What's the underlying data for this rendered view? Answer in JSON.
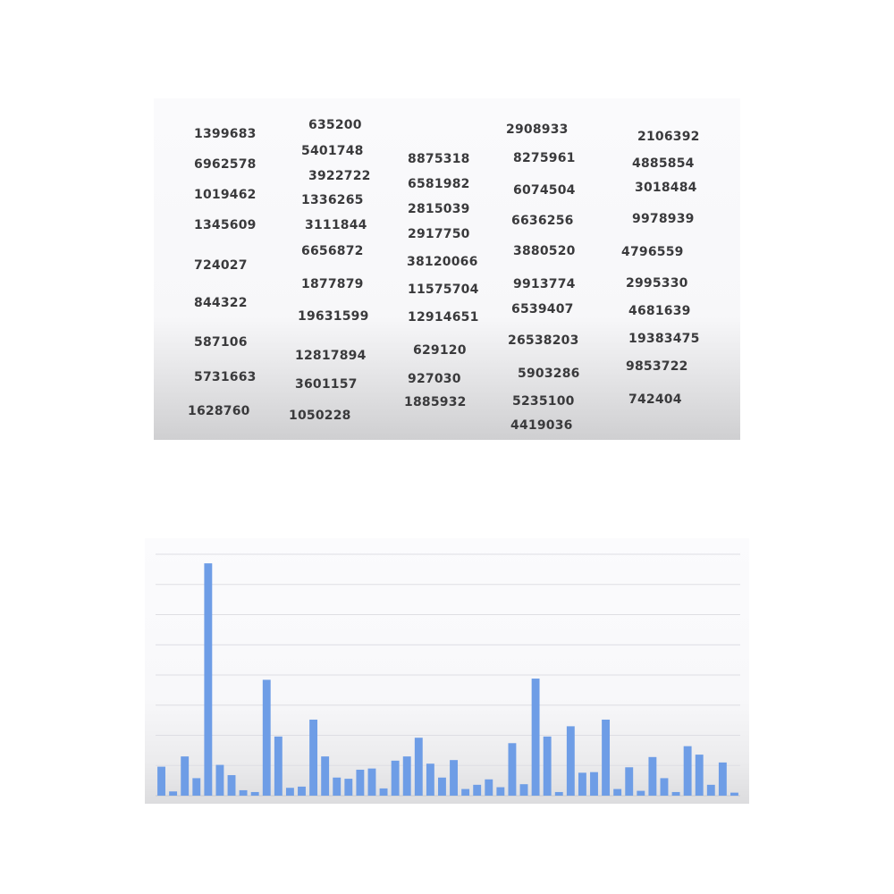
{
  "chart_data": [
    {
      "type": "table",
      "columns": [
        [
          "1399683",
          "6962578",
          "1019462",
          "1345609",
          "724027",
          "844322",
          "587106",
          "5731663",
          "1628760"
        ],
        [
          "635200",
          "5401748",
          "3922722",
          "1336265",
          "3111844",
          "6656872",
          "1877879",
          "19631599",
          "12817894",
          "3601157",
          "1050228"
        ],
        [
          "8875318",
          "6581982",
          "2815039",
          "2917750",
          "38120066",
          "11575704",
          "12914651",
          "629120",
          "927030",
          "1885932"
        ],
        [
          "2908933",
          "8275961",
          "6074504",
          "6636256",
          "3880520",
          "9913774",
          "6539407",
          "26538203",
          "5903286",
          "5235100",
          "4419036"
        ],
        [
          "2106392",
          "4885854",
          "3018484",
          "9978939",
          "4796559",
          "2995330",
          "4681639",
          "19383475",
          "9853722",
          "742404"
        ]
      ]
    },
    {
      "type": "bar",
      "grid": true,
      "ylim": [
        0,
        40000000
      ],
      "values": [
        4800000,
        700000,
        6500000,
        2900000,
        38500000,
        5100000,
        3400000,
        900000,
        600000,
        19200000,
        9800000,
        1300000,
        1500000,
        12600000,
        6500000,
        3000000,
        2800000,
        4300000,
        4500000,
        1200000,
        5800000,
        6500000,
        9600000,
        5300000,
        3000000,
        5900000,
        1100000,
        1800000,
        2700000,
        1400000,
        8700000,
        1900000,
        19400000,
        9800000,
        600000,
        11500000,
        3800000,
        3900000,
        12600000,
        1100000,
        4700000,
        800000,
        6400000,
        2900000,
        600000,
        8200000,
        6800000,
        1800000,
        5500000,
        500000
      ],
      "color": "#6e9de6"
    }
  ]
}
